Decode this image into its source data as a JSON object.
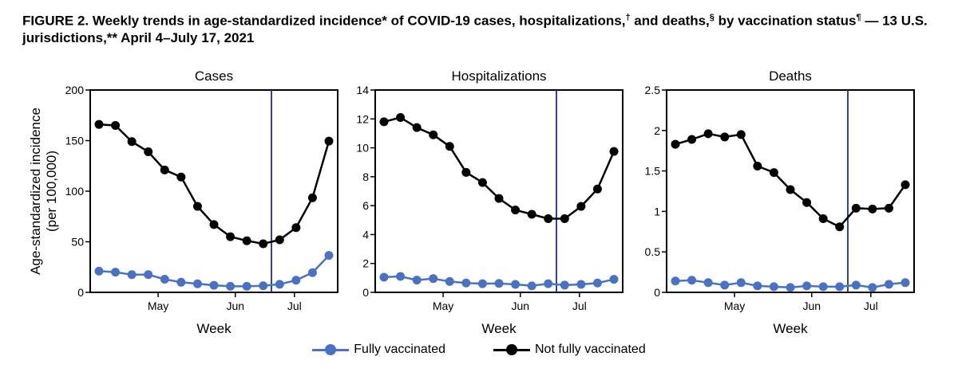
{
  "figure": {
    "title_main": "FIGURE 2. Weekly trends in age-standardized incidence* of COVID-19 cases, hospitalizations,",
    "mark_dagger": "†",
    "title_and_deaths": " and deaths,",
    "mark_section": "§",
    "title_by_status": " by vaccination status",
    "mark_pilcrow": "¶",
    "title_tail": " — 13 U.S. jurisdictions,** April 4–July 17, 2021"
  },
  "colors": {
    "fully": "#4a72c4",
    "not_fully": "#000000",
    "reference_line": "#1a2f8a"
  },
  "legend": {
    "fully": "Fully vaccinated",
    "not_fully": "Not fully vaccinated"
  },
  "shared_y_label": [
    "Age-standardized incidence",
    "(per 100,000)"
  ],
  "chart_data": [
    {
      "type": "line",
      "title": "Cases",
      "xlabel": "Week",
      "x_ticks": [
        "May",
        "Jun",
        "Jul"
      ],
      "ylim": [
        0,
        200
      ],
      "y_ticks": [
        "0",
        "50",
        "100",
        "150",
        "200"
      ],
      "week_count": 15,
      "reference_week": 10.5,
      "series": [
        {
          "key": "fully",
          "values": [
            21,
            20,
            17.5,
            17.5,
            13,
            10,
            8.5,
            7,
            6,
            6,
            6.5,
            8,
            12,
            19.5,
            36.5
          ]
        },
        {
          "key": "not_fully",
          "values": [
            166,
            165,
            149,
            139,
            121,
            114,
            85,
            67,
            55,
            51,
            48,
            52,
            64,
            93.5,
            149.5
          ]
        }
      ]
    },
    {
      "type": "line",
      "title": "Hospitalizations",
      "xlabel": "Week",
      "x_ticks": [
        "May",
        "Jun",
        "Jul"
      ],
      "ylim": [
        0,
        14
      ],
      "y_ticks": [
        "0",
        "2",
        "4",
        "6",
        "8",
        "10",
        "12",
        "14"
      ],
      "week_count": 15,
      "reference_week": 10.5,
      "series": [
        {
          "key": "fully",
          "values": [
            1.05,
            1.1,
            0.85,
            0.95,
            0.75,
            0.65,
            0.6,
            0.62,
            0.55,
            0.45,
            0.6,
            0.5,
            0.55,
            0.65,
            0.9
          ]
        },
        {
          "key": "not_fully",
          "values": [
            11.8,
            12.1,
            11.4,
            10.9,
            10.1,
            8.3,
            7.6,
            6.5,
            5.7,
            5.4,
            5.1,
            5.1,
            5.95,
            7.15,
            9.75
          ]
        }
      ]
    },
    {
      "type": "line",
      "title": "Deaths",
      "xlabel": "Week",
      "x_ticks": [
        "May",
        "Jun",
        "Jul"
      ],
      "ylim": [
        0,
        2.5
      ],
      "y_ticks": [
        "0",
        "0.5",
        "1",
        "1.5",
        "2",
        "2.5"
      ],
      "week_count": 15,
      "reference_week": 10.5,
      "series": [
        {
          "key": "fully",
          "values": [
            0.14,
            0.15,
            0.12,
            0.09,
            0.12,
            0.08,
            0.07,
            0.06,
            0.08,
            0.07,
            0.07,
            0.09,
            0.06,
            0.1,
            0.12
          ]
        },
        {
          "key": "not_fully",
          "values": [
            1.83,
            1.89,
            1.96,
            1.92,
            1.95,
            1.56,
            1.48,
            1.27,
            1.11,
            0.91,
            0.81,
            1.04,
            1.03,
            1.04,
            1.33
          ]
        }
      ]
    }
  ]
}
